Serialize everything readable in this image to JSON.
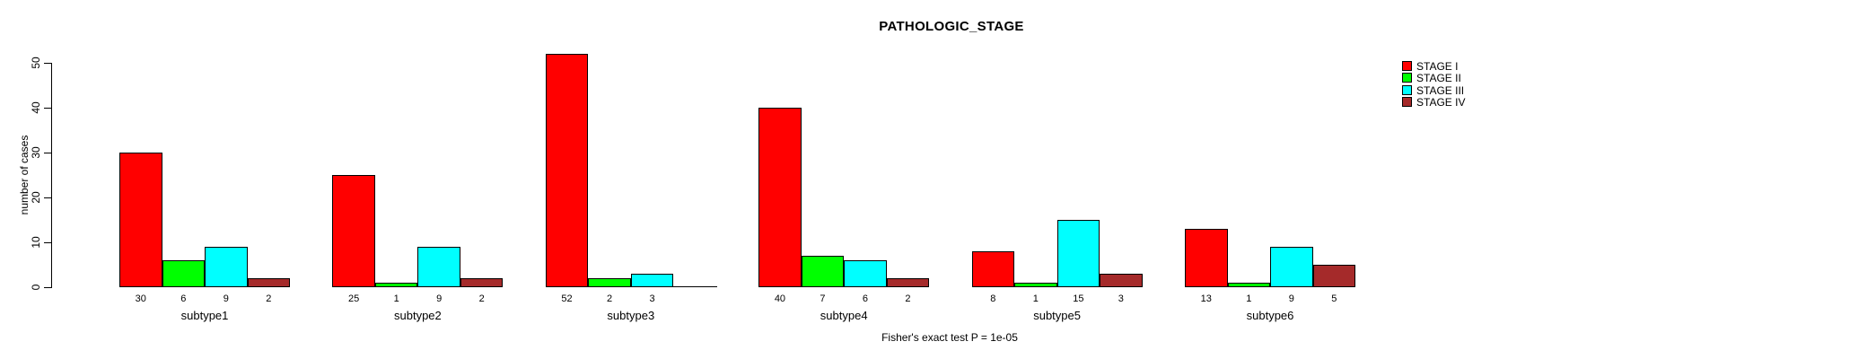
{
  "chart_data": {
    "type": "bar",
    "title": "PATHOLOGIC_STAGE",
    "ylabel": "number of cases",
    "footer": "Fisher's exact test P = 1e-05",
    "categories": [
      "subtype1",
      "subtype2",
      "subtype3",
      "subtype4",
      "subtype5",
      "subtype6"
    ],
    "series": [
      {
        "name": "STAGE I",
        "color": "#FF0000",
        "values": [
          30,
          25,
          52,
          40,
          8,
          13
        ]
      },
      {
        "name": "STAGE II",
        "color": "#00FF00",
        "values": [
          6,
          1,
          2,
          7,
          1,
          1
        ]
      },
      {
        "name": "STAGE III",
        "color": "#00FFFF",
        "values": [
          9,
          9,
          3,
          6,
          15,
          9
        ]
      },
      {
        "name": "STAGE IV",
        "color": "#A52A2A",
        "values": [
          2,
          2,
          0,
          2,
          3,
          5
        ]
      }
    ],
    "value_labels": [
      [
        "30",
        "6",
        "9",
        "2"
      ],
      [
        "25",
        "1",
        "9",
        "2"
      ],
      [
        "52",
        "2",
        "3",
        ""
      ],
      [
        "40",
        "7",
        "6",
        "2"
      ],
      [
        "8",
        "1",
        "15",
        "3"
      ],
      [
        "13",
        "1",
        "9",
        "5"
      ]
    ],
    "yticks": [
      0,
      10,
      20,
      30,
      40,
      50
    ],
    "ylim": [
      0,
      50
    ],
    "grid": false,
    "legend_position": "right"
  }
}
